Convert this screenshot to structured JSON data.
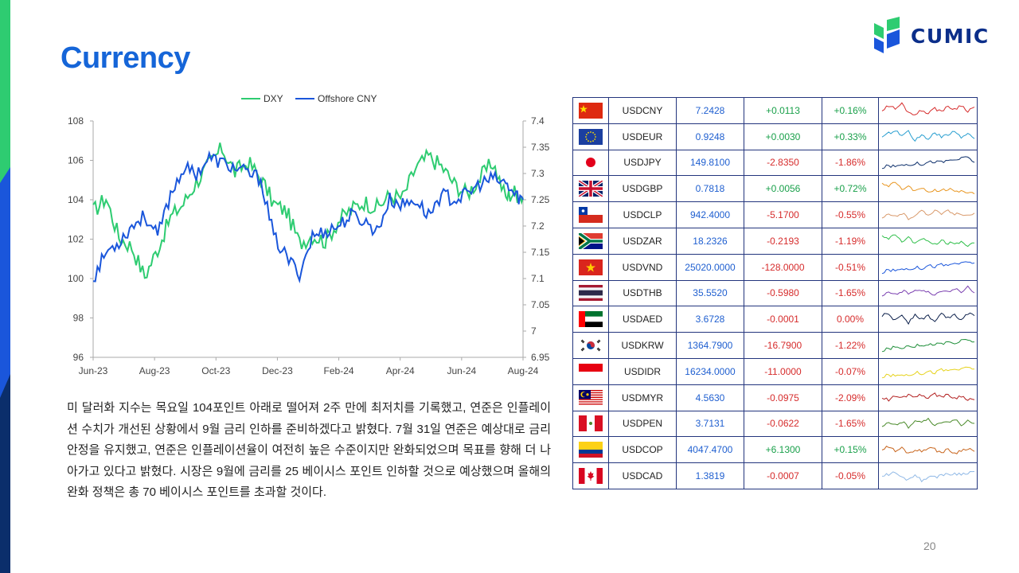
{
  "title": "Currency",
  "logo": {
    "text": "CUMIC"
  },
  "page_number": "20",
  "colors": {
    "accent": "#1565d8",
    "dxy": "#2ecc71",
    "cny": "#1a56db",
    "positive": "#19a04a",
    "negative": "#d62c2c"
  },
  "paragraph": "미 달러화 지수는 목요일 104포인트 아래로 떨어져 2주 만에 최저치를 기록했고, 연준은 인플레이션 수치가 개선된 상황에서 9월 금리 인하를 준비하겠다고 밝혔다. 7월 31일 연준은 예상대로 금리 안정을 유지했고, 연준은 인플레이션율이 여전히 높은 수준이지만 완화되었으며 목표를 향해 더 나아가고 있다고 밝혔다. 시장은 9월에 금리를 25 베이시스 포인트 인하할 것으로 예상했으며 올해의 완화 정책은 총 70 베이시스 포인트를 초과할 것이다.",
  "chart_data": {
    "type": "line",
    "title": "",
    "xlabel": "",
    "ylabel": "",
    "legend_position": "top-center",
    "x_ticks": [
      "Jun-23",
      "Aug-23",
      "Oct-23",
      "Dec-23",
      "Feb-24",
      "Apr-24",
      "Jun-24",
      "Aug-24"
    ],
    "ylim_left": [
      96,
      108
    ],
    "yticks_left": [
      "96",
      "98",
      "100",
      "102",
      "104",
      "106",
      "108"
    ],
    "ylim_right": [
      6.95,
      7.4
    ],
    "yticks_right": [
      "6.95",
      "7",
      "7.05",
      "7.1",
      "7.15",
      "7.2",
      "7.25",
      "7.3",
      "7.35",
      "7.4"
    ],
    "x_positions": [
      0,
      0.03,
      0.06,
      0.09,
      0.12,
      0.15,
      0.18,
      0.21,
      0.24,
      0.27,
      0.3,
      0.33,
      0.36,
      0.39,
      0.42,
      0.45,
      0.48,
      0.51,
      0.54,
      0.57,
      0.6,
      0.63,
      0.66,
      0.69,
      0.72,
      0.75,
      0.78,
      0.81,
      0.84,
      0.87,
      0.9,
      0.93,
      0.96,
      0.98,
      1.0
    ],
    "series": [
      {
        "name": "DXY",
        "axis": "left",
        "color": "#2ecc71",
        "values": [
          103.4,
          104.1,
          102.1,
          101.6,
          100.1,
          101.5,
          103.1,
          103.8,
          104.9,
          105.8,
          106.6,
          105.4,
          105.9,
          105.1,
          103.8,
          103.4,
          101.8,
          102.2,
          101.9,
          102.9,
          103.5,
          103.9,
          103.6,
          104.2,
          104.1,
          105.6,
          106.2,
          105.7,
          104.8,
          104.3,
          105.1,
          105.9,
          104.1,
          104.4,
          104.1
        ]
      },
      {
        "name": "Offshore CNY",
        "axis": "right",
        "color": "#1a56db",
        "values": [
          7.1,
          7.15,
          7.17,
          7.2,
          7.22,
          7.18,
          7.26,
          7.31,
          7.3,
          7.33,
          7.32,
          7.31,
          7.3,
          7.29,
          7.18,
          7.14,
          7.11,
          7.18,
          7.19,
          7.2,
          7.22,
          7.21,
          7.19,
          7.25,
          7.24,
          7.25,
          7.22,
          7.26,
          7.25,
          7.26,
          7.28,
          7.29,
          7.28,
          7.26,
          7.25
        ]
      }
    ]
  },
  "table": {
    "rows": [
      {
        "pair": "USDCNY",
        "value": "7.2428",
        "change": "+0.0113",
        "pct": "+0.16%",
        "color": "#d62c2c",
        "flag": "china-flag-icon",
        "dir": "pos",
        "spark": [
          0.5,
          0.8,
          0.6,
          0.9,
          0.4,
          0.3,
          0.5,
          0.4,
          0.6,
          0.5,
          0.7,
          0.6,
          0.8,
          0.5,
          0.7
        ]
      },
      {
        "pair": "USDEUR",
        "value": "0.9248",
        "change": "+0.0030",
        "pct": "+0.33%",
        "color": "#2a9fd0",
        "flag": "eu-flag-icon",
        "dir": "pos",
        "spark": [
          0.4,
          0.7,
          0.9,
          0.5,
          0.8,
          0.3,
          0.6,
          0.4,
          0.7,
          0.5,
          0.6,
          0.8,
          0.5,
          0.7,
          0.4
        ]
      },
      {
        "pair": "USDJPY",
        "value": "149.8100",
        "change": "-2.8350",
        "pct": "-1.86%",
        "color": "#0d2f6b",
        "flag": "japan-flag-icon",
        "dir": "neg",
        "spark": [
          0.2,
          0.3,
          0.25,
          0.4,
          0.35,
          0.45,
          0.4,
          0.5,
          0.55,
          0.5,
          0.6,
          0.65,
          0.7,
          0.8,
          0.5
        ]
      },
      {
        "pair": "USDGBP",
        "value": "0.7818",
        "change": "+0.0056",
        "pct": "+0.72%",
        "color": "#e8951e",
        "flag": "uk-flag-icon",
        "dir": "pos",
        "spark": [
          0.8,
          0.6,
          0.9,
          0.5,
          0.6,
          0.4,
          0.5,
          0.3,
          0.4,
          0.35,
          0.5,
          0.3,
          0.4,
          0.25,
          0.2
        ]
      },
      {
        "pair": "USDCLP",
        "value": "942.4000",
        "change": "-5.1700",
        "pct": "-0.55%",
        "color": "#d99a6c",
        "flag": "chile-flag-icon",
        "dir": "neg",
        "spark": [
          0.3,
          0.5,
          0.4,
          0.6,
          0.3,
          0.5,
          0.7,
          0.5,
          0.8,
          0.6,
          0.7,
          0.5,
          0.6,
          0.4,
          0.6
        ]
      },
      {
        "pair": "USDZAR",
        "value": "18.2326",
        "change": "-0.2193",
        "pct": "-1.19%",
        "color": "#2fbf4a",
        "flag": "south-africa-flag-icon",
        "dir": "neg",
        "spark": [
          0.8,
          0.6,
          0.9,
          0.5,
          0.7,
          0.4,
          0.6,
          0.5,
          0.3,
          0.5,
          0.4,
          0.3,
          0.5,
          0.2,
          0.4
        ]
      },
      {
        "pair": "USDVND",
        "value": "25020.0000",
        "change": "-128.0000",
        "pct": "-0.51%",
        "color": "#1a56db",
        "flag": "vietnam-flag-icon",
        "dir": "neg",
        "spark": [
          0.2,
          0.35,
          0.3,
          0.45,
          0.4,
          0.5,
          0.45,
          0.6,
          0.55,
          0.65,
          0.6,
          0.75,
          0.7,
          0.8,
          0.75
        ]
      },
      {
        "pair": "USDTHB",
        "value": "35.5520",
        "change": "-0.5980",
        "pct": "-1.65%",
        "color": "#7a3fb0",
        "flag": "thailand-flag-icon",
        "dir": "neg",
        "spark": [
          0.3,
          0.5,
          0.4,
          0.6,
          0.5,
          0.7,
          0.55,
          0.6,
          0.4,
          0.65,
          0.5,
          0.7,
          0.6,
          0.8,
          0.5
        ]
      },
      {
        "pair": "USDAED",
        "value": "3.6728",
        "change": "-0.0001",
        "pct": "0.00%",
        "color": "#0b1f4a",
        "flag": "uae-flag-icon",
        "dir": "neu",
        "spark": [
          0.7,
          0.8,
          0.4,
          0.75,
          0.3,
          0.8,
          0.5,
          0.7,
          0.35,
          0.8,
          0.6,
          0.75,
          0.5,
          0.85,
          0.7
        ]
      },
      {
        "pair": "USDKRW",
        "value": "1364.7900",
        "change": "-16.7900",
        "pct": "-1.22%",
        "color": "#1f8f3a",
        "flag": "korea-flag-icon",
        "dir": "neg",
        "spark": [
          0.2,
          0.3,
          0.4,
          0.35,
          0.5,
          0.45,
          0.55,
          0.5,
          0.6,
          0.55,
          0.7,
          0.6,
          0.75,
          0.8,
          0.7
        ]
      },
      {
        "pair": "USDIDR",
        "value": "16234.0000",
        "change": "-11.0000",
        "pct": "-0.07%",
        "color": "#e6d21a",
        "flag": "indonesia-flag-icon",
        "dir": "neg",
        "spark": [
          0.2,
          0.3,
          0.25,
          0.35,
          0.3,
          0.45,
          0.4,
          0.5,
          0.45,
          0.6,
          0.55,
          0.65,
          0.6,
          0.75,
          0.65
        ]
      },
      {
        "pair": "USDMYR",
        "value": "4.5630",
        "change": "-0.0975",
        "pct": "-2.09%",
        "color": "#b21f1f",
        "flag": "malaysia-flag-icon",
        "dir": "neg",
        "spark": [
          0.5,
          0.4,
          0.6,
          0.5,
          0.7,
          0.6,
          0.65,
          0.55,
          0.7,
          0.6,
          0.65,
          0.5,
          0.6,
          0.45,
          0.4
        ]
      },
      {
        "pair": "USDPEN",
        "value": "3.7131",
        "change": "-0.0622",
        "pct": "-1.65%",
        "color": "#4a8a2a",
        "flag": "peru-flag-icon",
        "dir": "neg",
        "spark": [
          0.3,
          0.5,
          0.4,
          0.6,
          0.3,
          0.7,
          0.5,
          0.8,
          0.4,
          0.6,
          0.5,
          0.7,
          0.45,
          0.6,
          0.5
        ]
      },
      {
        "pair": "USDCOP",
        "value": "4047.4700",
        "change": "+6.1300",
        "pct": "+0.15%",
        "color": "#c8651c",
        "flag": "colombia-flag-icon",
        "dir": "pos",
        "spark": [
          0.5,
          0.7,
          0.4,
          0.6,
          0.3,
          0.5,
          0.4,
          0.65,
          0.5,
          0.35,
          0.5,
          0.3,
          0.45,
          0.6,
          0.4
        ]
      },
      {
        "pair": "USDCAD",
        "value": "1.3819",
        "change": "-0.0007",
        "pct": "-0.05%",
        "color": "#8fb8e6",
        "flag": "canada-flag-icon",
        "dir": "neg",
        "spark": [
          0.5,
          0.6,
          0.7,
          0.4,
          0.3,
          0.6,
          0.2,
          0.5,
          0.4,
          0.6,
          0.55,
          0.65,
          0.6,
          0.7,
          0.75
        ]
      }
    ]
  }
}
